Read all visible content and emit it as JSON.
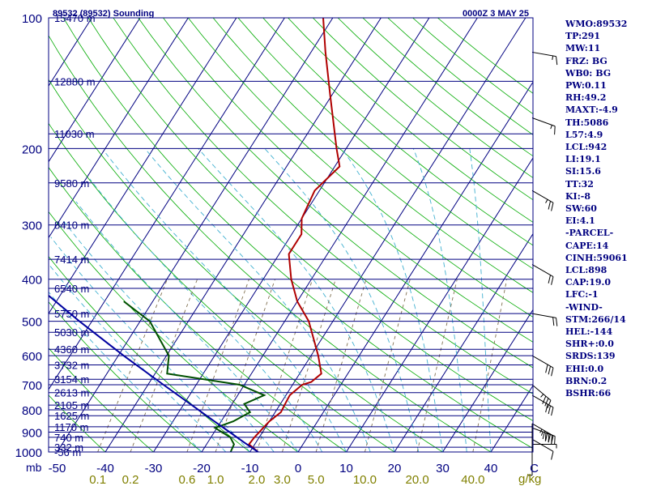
{
  "header": {
    "station": "89532 (89532) Sounding",
    "time": "0000Z  3 MAY 25"
  },
  "mixing_ratio_unit": "g/kg",
  "pressure_axis_unit": "mb",
  "stats": [
    "WMO:89532",
    "TP:291",
    "MW:11",
    "FRZ: BG",
    "WB0: BG",
    "PW:0.11",
    "RH:49.2",
    "MAXT:-4.9",
    "TH:5086",
    "L57:4.9",
    "LCL:942",
    "LI:19.1",
    "SI:15.6",
    "TT:32",
    "KI:-8",
    "SW:60",
    "EI:4.1",
    "-PARCEL-",
    "CAPE:14",
    "CINH:59061",
    "LCL:898",
    "CAP:19.0",
    "LFC:-1",
    "-WIND-",
    "STM:266/14",
    "HEL:-144",
    "SHR+:0.0",
    "SRDS:139",
    "EHI:0.0",
    "BRN:0.2",
    "BSHR:66"
  ],
  "colors": {
    "temperature": "#b00000",
    "dewpoint": "#005000",
    "parcel": "#0000a0",
    "isobar": "#000080",
    "isotherm": "#000080",
    "dry_adiabat": "#00aa00",
    "moist_adiabat": "#40b0d0",
    "mixing_ratio": "#807050",
    "label": "#000080",
    "mixing_label": "#808000"
  },
  "chart_data": {
    "type": "line",
    "title": "89532 (89532) Sounding",
    "xlabel": "",
    "ylabel": "mb",
    "y_scale": "log",
    "ylim": [
      1000,
      100
    ],
    "temperature_ticks_at_1000mb": [
      -50,
      -40,
      -30,
      -20,
      -10,
      0,
      10,
      20,
      30,
      40
    ],
    "temperature_tick_labels": [
      "-50",
      "-40",
      "-30",
      "-20",
      "-10",
      "0",
      "10",
      "20",
      "30",
      "40",
      "C"
    ],
    "pressure_ticks": [
      1000,
      900,
      800,
      700,
      600,
      500,
      400,
      300,
      200,
      100
    ],
    "mixing_ratio_ticks": [
      {
        "label": "0.1",
        "value": 0.1
      },
      {
        "label": "0.2",
        "value": 0.2
      },
      {
        "label": "0.6",
        "value": 0.6
      },
      {
        "label": "1.0",
        "value": 1.0
      },
      {
        "label": "2.0",
        "value": 2.0
      },
      {
        "label": "3.0",
        "value": 3.0
      },
      {
        "label": "5.0",
        "value": 5.0
      },
      {
        "label": "10.0",
        "value": 10.0
      },
      {
        "label": "20.0",
        "value": 20.0
      },
      {
        "label": "40.0",
        "value": 40.0
      }
    ],
    "height_labels": [
      {
        "p": 1000,
        "label": "-56 m"
      },
      {
        "p": 975,
        "label": "332 m"
      },
      {
        "p": 925,
        "label": "740 m"
      },
      {
        "p": 875,
        "label": "1170 m"
      },
      {
        "p": 825,
        "label": "1625 m"
      },
      {
        "p": 780,
        "label": "2105 m"
      },
      {
        "p": 730,
        "label": "2613 m"
      },
      {
        "p": 680,
        "label": "3154 m"
      },
      {
        "p": 630,
        "label": "3732 m"
      },
      {
        "p": 580,
        "label": "4360 m"
      },
      {
        "p": 530,
        "label": "5030 m"
      },
      {
        "p": 480,
        "label": "5750 m"
      },
      {
        "p": 420,
        "label": "6540 m"
      },
      {
        "p": 360,
        "label": "7414 m"
      },
      {
        "p": 300,
        "label": "8410 m"
      },
      {
        "p": 240,
        "label": "9580 m"
      },
      {
        "p": 185,
        "label": "11030 m"
      },
      {
        "p": 140,
        "label": "12880 m"
      },
      {
        "p": 100,
        "label": "15470 m"
      }
    ],
    "series": [
      {
        "name": "",
        "role": "temperature",
        "points": [
          {
            "p": 1000,
            "t": -8.3
          },
          {
            "p": 960,
            "t": -11.2
          },
          {
            "p": 925,
            "t": -11.0
          },
          {
            "p": 880,
            "t": -10.4
          },
          {
            "p": 850,
            "t": -10.0
          },
          {
            "p": 810,
            "t": -8.8
          },
          {
            "p": 780,
            "t": -9.0
          },
          {
            "p": 740,
            "t": -9.2
          },
          {
            "p": 700,
            "t": -8.0
          },
          {
            "p": 690,
            "t": -6.5
          },
          {
            "p": 660,
            "t": -5.5
          },
          {
            "p": 600,
            "t": -8.5
          },
          {
            "p": 500,
            "t": -15.0
          },
          {
            "p": 450,
            "t": -20.0
          },
          {
            "p": 400,
            "t": -24.2
          },
          {
            "p": 350,
            "t": -28.0
          },
          {
            "p": 315,
            "t": -28.0
          },
          {
            "p": 290,
            "t": -30.0
          },
          {
            "p": 250,
            "t": -31.0
          },
          {
            "p": 220,
            "t": -29.0
          },
          {
            "p": 200,
            "t": -32.0
          },
          {
            "p": 150,
            "t": -40.5
          },
          {
            "p": 120,
            "t": -47.0
          },
          {
            "p": 100,
            "t": -52.0
          }
        ]
      },
      {
        "name": "",
        "role": "dewpoint",
        "points": [
          {
            "p": 1000,
            "t": -14.0
          },
          {
            "p": 960,
            "t": -14.3
          },
          {
            "p": 925,
            "t": -16.0
          },
          {
            "p": 880,
            "t": -20.4
          },
          {
            "p": 850,
            "t": -17.5
          },
          {
            "p": 810,
            "t": -15.2
          },
          {
            "p": 775,
            "t": -17.5
          },
          {
            "p": 740,
            "t": -14.5
          },
          {
            "p": 700,
            "t": -21.0
          },
          {
            "p": 660,
            "t": -37.5
          },
          {
            "p": 600,
            "t": -39.5
          },
          {
            "p": 500,
            "t": -48.0
          },
          {
            "p": 450,
            "t": -56.0
          }
        ]
      },
      {
        "name": "",
        "role": "parcel",
        "points": [
          {
            "p": 1000,
            "t": -8.3
          },
          {
            "p": 950,
            "t": -12.5
          },
          {
            "p": 900,
            "t": -16.8
          },
          {
            "p": 850,
            "t": -21.4
          },
          {
            "p": 800,
            "t": -26.2
          },
          {
            "p": 700,
            "t": -36.8
          },
          {
            "p": 600,
            "t": -48.9
          },
          {
            "p": 500,
            "t": -62.6
          },
          {
            "p": 400,
            "t": -78.6
          },
          {
            "p": 300,
            "t": -98.0
          },
          {
            "p": 200,
            "t": -123.0
          },
          {
            "p": 150,
            "t": -139.0
          },
          {
            "p": 110,
            "t": -156.0
          }
        ]
      }
    ],
    "wind_barbs": [
      {
        "p": 995,
        "dir": 0,
        "speed": 5
      },
      {
        "p": 960,
        "dir": 270,
        "speed": 5
      },
      {
        "p": 935,
        "dir": 300,
        "speed": 10
      },
      {
        "p": 880,
        "dir": 290,
        "speed": 45
      },
      {
        "p": 860,
        "dir": 300,
        "speed": 45
      },
      {
        "p": 740,
        "dir": 300,
        "speed": 30
      },
      {
        "p": 700,
        "dir": 310,
        "speed": 35
      },
      {
        "p": 600,
        "dir": 300,
        "speed": 30
      },
      {
        "p": 480,
        "dir": 280,
        "speed": 20
      },
      {
        "p": 370,
        "dir": 300,
        "speed": 20
      },
      {
        "p": 250,
        "dir": 300,
        "speed": 25
      },
      {
        "p": 170,
        "dir": 290,
        "speed": 15
      },
      {
        "p": 120,
        "dir": 280,
        "speed": 15
      }
    ]
  }
}
